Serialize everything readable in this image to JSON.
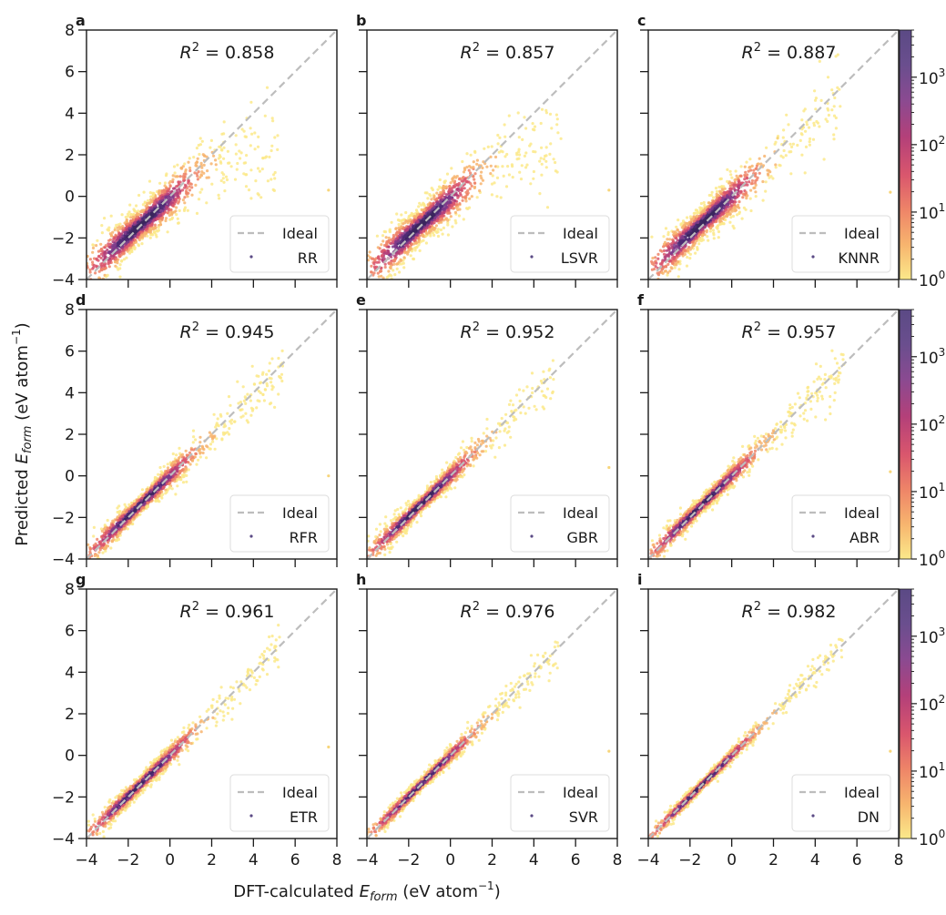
{
  "chart_data": {
    "type": "scatter",
    "subtype": "density-colored scatter grid (3x3) with shared colorbars",
    "xlabel": {
      "prefix": "DFT-calculated ",
      "symbol": "E",
      "subscript": "form",
      "suffix": " (eV atom",
      "exponent": "−1",
      "close": ")"
    },
    "ylabel": {
      "prefix": "Predicted ",
      "symbol": "E",
      "subscript": "form",
      "suffix": " (eV atom",
      "exponent": "−1",
      "close": ")"
    },
    "xlim": [
      -4,
      8
    ],
    "ylim": [
      -4,
      8
    ],
    "xticks": [
      -4,
      -2,
      0,
      2,
      4,
      6,
      8
    ],
    "yticks": [
      -4,
      -2,
      0,
      2,
      4,
      6,
      8
    ],
    "xtick_labels": [
      "−4",
      "−2",
      "0",
      "2",
      "4",
      "6",
      "8"
    ],
    "ytick_labels": [
      "−4",
      "−2",
      "0",
      "2",
      "4",
      "6",
      "8"
    ],
    "grid": false,
    "legend_placement": "lower-right",
    "ideal_line": {
      "label": "Ideal",
      "color": "#bdbdbd",
      "style": "dashed",
      "from": [
        -4,
        -4
      ],
      "to": [
        8,
        8
      ]
    },
    "colorbar": {
      "scale": "log",
      "range": [
        1,
        5000
      ],
      "ticks": [
        1,
        10,
        100,
        1000
      ],
      "tick_labels": [
        {
          "base": "10",
          "exp": "0"
        },
        {
          "base": "10",
          "exp": "1"
        },
        {
          "base": "10",
          "exp": "2"
        },
        {
          "base": "10",
          "exp": "3"
        }
      ],
      "colormap": [
        "#fbe98a",
        "#f7b46e",
        "#ee8468",
        "#d9566d",
        "#b44079",
        "#7d3a8a",
        "#4e2a74",
        "#3b275e"
      ],
      "placement": "right of column 3, one per row"
    },
    "r2_prefix": "R",
    "r2_exponent": "2",
    "r2_eq": " = ",
    "panels": [
      {
        "letter": "a",
        "model": "RR",
        "r2": "0.858",
        "fit": {
          "type": "saturating",
          "slope": 0.85,
          "cap": 2.3,
          "spread": 0.55,
          "xmin": -4,
          "xmax": 5.2
        },
        "outliers": [
          [
            7.6,
            0.3
          ]
        ]
      },
      {
        "letter": "b",
        "model": "LSVR",
        "r2": "0.857",
        "fit": {
          "type": "saturating",
          "slope": 0.85,
          "cap": 2.3,
          "spread": 0.55,
          "xmin": -4,
          "xmax": 5.3
        },
        "outliers": [
          [
            7.6,
            0.3
          ]
        ]
      },
      {
        "letter": "c",
        "model": "KNNR",
        "r2": "0.887",
        "fit": {
          "type": "linear",
          "slope": 0.92,
          "cap": 6,
          "spread": 0.5,
          "xmin": -4,
          "xmax": 5.2
        },
        "outliers": [
          [
            7.6,
            0.2
          ],
          [
            2.2,
            2.8
          ]
        ]
      },
      {
        "letter": "d",
        "model": "RFR",
        "r2": "0.945",
        "fit": {
          "type": "linear",
          "slope": 0.97,
          "cap": 6,
          "spread": 0.3,
          "xmin": -4,
          "xmax": 5.4
        },
        "outliers": [
          [
            7.6,
            0.0
          ]
        ]
      },
      {
        "letter": "e",
        "model": "GBR",
        "r2": "0.952",
        "fit": {
          "type": "linear",
          "slope": 0.97,
          "cap": 6,
          "spread": 0.28,
          "xmin": -4,
          "xmax": 5.0
        },
        "outliers": [
          [
            7.6,
            0.4
          ]
        ]
      },
      {
        "letter": "f",
        "model": "ABR",
        "r2": "0.957",
        "fit": {
          "type": "linear",
          "slope": 0.98,
          "cap": 6,
          "spread": 0.26,
          "xmin": -4,
          "xmax": 5.4
        },
        "outliers": [
          [
            7.6,
            0.2
          ]
        ]
      },
      {
        "letter": "g",
        "model": "ETR",
        "r2": "0.961",
        "fit": {
          "type": "linear",
          "slope": 0.98,
          "cap": 6,
          "spread": 0.25,
          "xmin": -4,
          "xmax": 5.3
        },
        "outliers": [
          [
            7.6,
            0.4
          ]
        ]
      },
      {
        "letter": "h",
        "model": "SVR",
        "r2": "0.976",
        "fit": {
          "type": "linear",
          "slope": 0.99,
          "cap": 6,
          "spread": 0.2,
          "xmin": -4,
          "xmax": 5.2
        },
        "outliers": [
          [
            7.6,
            0.2
          ]
        ]
      },
      {
        "letter": "i",
        "model": "DN",
        "r2": "0.982",
        "fit": {
          "type": "linear",
          "slope": 1.0,
          "cap": 6,
          "spread": 0.16,
          "xmin": -4,
          "xmax": 5.3
        },
        "outliers": [
          [
            7.6,
            0.2
          ]
        ]
      }
    ]
  }
}
